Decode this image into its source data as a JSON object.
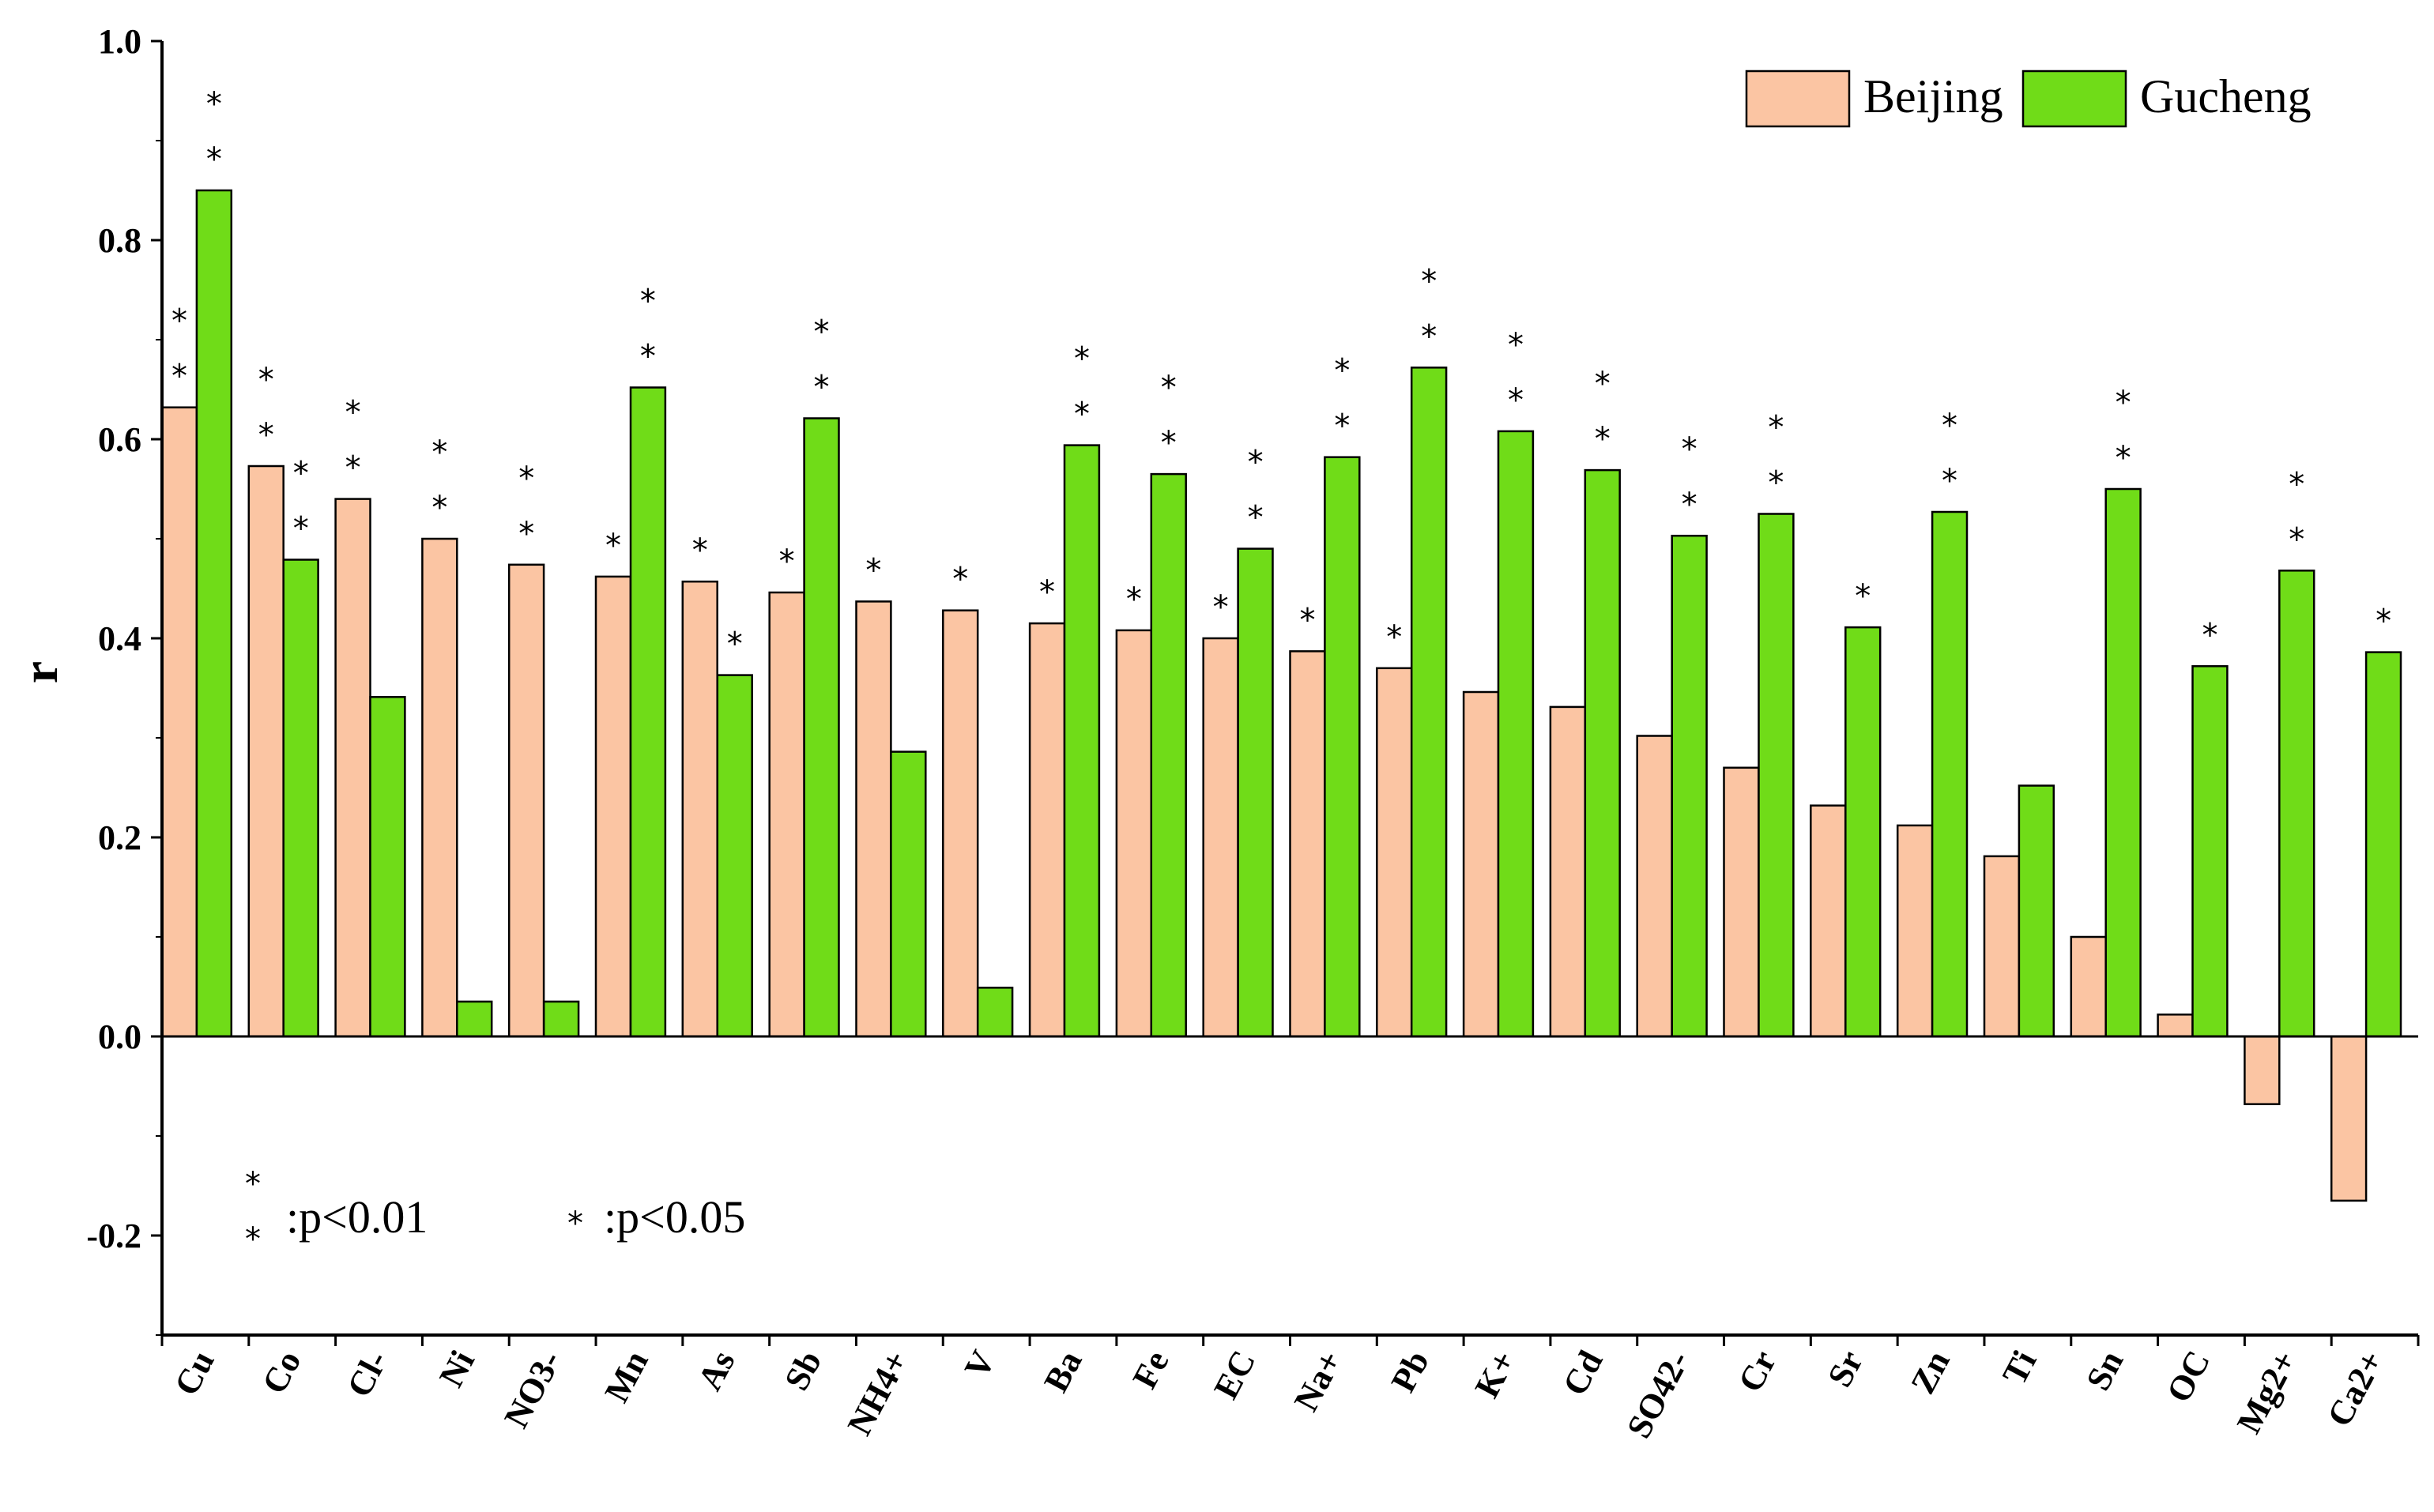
{
  "chart_data": {
    "type": "bar",
    "title": "",
    "xlabel": "",
    "ylabel": "r",
    "ylim": [
      -0.3,
      1.0
    ],
    "yticks": [
      "1.0",
      "0.8",
      "0.6",
      "0.4",
      "0.2",
      "0.0",
      "-0.2"
    ],
    "categories": [
      "Cu",
      "Co",
      "Cl-",
      "Ni",
      "NO3-",
      "Mn",
      "As",
      "Sb",
      "NH4+",
      "V",
      "Ba",
      "Fe",
      "EC",
      "Na+",
      "Pb",
      "K+",
      "Cd",
      "SO42-",
      "Cr",
      "Sr",
      "Zn",
      "Ti",
      "Sn",
      "OC",
      "Mg2+",
      "Ca2+"
    ],
    "series": [
      {
        "name": "Beijing",
        "color": "#FBC5A3",
        "values": [
          0.632,
          0.573,
          0.54,
          0.5,
          0.474,
          0.462,
          0.457,
          0.446,
          0.437,
          0.428,
          0.415,
          0.408,
          0.4,
          0.387,
          0.37,
          0.346,
          0.331,
          0.302,
          0.27,
          0.232,
          0.212,
          0.181,
          0.1,
          0.022,
          -0.068,
          -0.165
        ],
        "significance": [
          2,
          2,
          2,
          2,
          2,
          1,
          1,
          1,
          1,
          1,
          1,
          1,
          1,
          1,
          1,
          0,
          0,
          0,
          0,
          0,
          0,
          0,
          0,
          0,
          0,
          0
        ]
      },
      {
        "name": "Gucheng",
        "color": "#70DC18",
        "values": [
          0.85,
          0.479,
          0.341,
          0.035,
          0.035,
          0.652,
          0.363,
          0.621,
          0.286,
          0.049,
          0.594,
          0.565,
          0.49,
          0.582,
          0.672,
          0.608,
          0.569,
          0.503,
          0.525,
          0.411,
          0.527,
          0.252,
          0.55,
          0.372,
          0.468,
          0.386
        ],
        "significance": [
          2,
          2,
          0,
          0,
          0,
          2,
          1,
          2,
          0,
          0,
          2,
          2,
          2,
          2,
          2,
          2,
          2,
          2,
          2,
          1,
          2,
          0,
          2,
          1,
          2,
          1
        ]
      }
    ],
    "legend": {
      "position": "top-right",
      "entries": [
        "Beijing",
        "Gucheng"
      ]
    },
    "annotations": [
      {
        "symbol": "double-star",
        "text": ":p<0.01"
      },
      {
        "symbol": "single-star",
        "text": ":p<0.05"
      }
    ]
  }
}
